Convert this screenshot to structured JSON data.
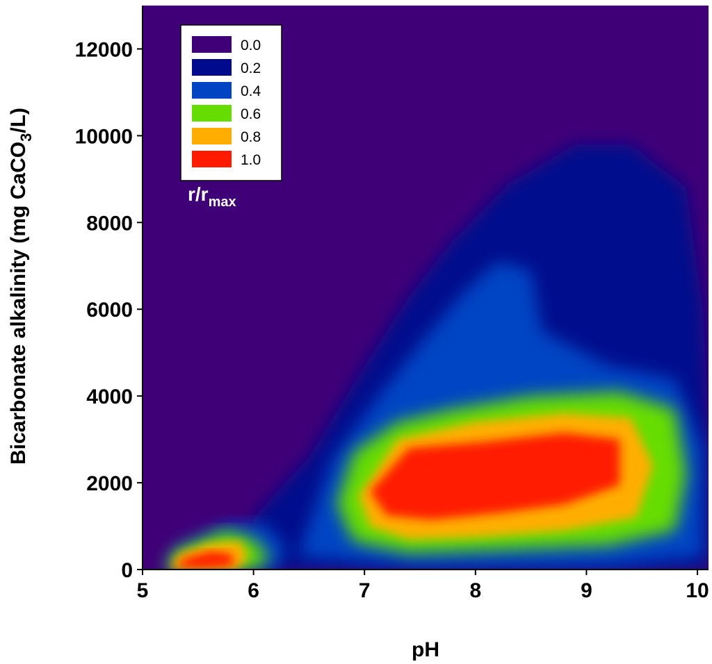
{
  "chart_data": {
    "type": "heatmap",
    "xlabel": "pH",
    "ylabel_main": "Bicarbonate alkalinity (mg CaCO",
    "ylabel_sub": "3",
    "ylabel_end": "/L)",
    "xlim": [
      5,
      10.1
    ],
    "ylim": [
      0,
      13000
    ],
    "x_ticks": [
      "5",
      "6",
      "7",
      "8",
      "9",
      "10"
    ],
    "y_ticks": [
      "0",
      "2000",
      "4000",
      "6000",
      "8000",
      "10000",
      "12000"
    ],
    "legend": {
      "title_main": "r/r",
      "title_sub": "max",
      "placement": "top-left",
      "entries": [
        {
          "label": "0.0",
          "color": "#3f0077"
        },
        {
          "label": "0.2",
          "color": "#000a8c"
        },
        {
          "label": "0.4",
          "color": "#0044c4"
        },
        {
          "label": "0.6",
          "color": "#66dd00"
        },
        {
          "label": "0.8",
          "color": "#ffae00"
        },
        {
          "label": "1.0",
          "color": "#ff1a00"
        }
      ]
    },
    "regions": [
      {
        "level": 0.2,
        "polygon": [
          [
            6.0,
            1200
          ],
          [
            6.5,
            2600
          ],
          [
            7.0,
            4700
          ],
          [
            7.4,
            6300
          ],
          [
            7.8,
            7600
          ],
          [
            8.3,
            8900
          ],
          [
            8.9,
            9800
          ],
          [
            9.4,
            9800
          ],
          [
            9.9,
            8800
          ],
          [
            10.05,
            6000
          ],
          [
            10.1,
            3200
          ],
          [
            10.1,
            0
          ],
          [
            6.0,
            0
          ]
        ]
      },
      {
        "level": 0.4,
        "polygon": [
          [
            6.4,
            300
          ],
          [
            6.7,
            2500
          ],
          [
            7.1,
            3900
          ],
          [
            7.5,
            5200
          ],
          [
            7.9,
            6400
          ],
          [
            8.2,
            7100
          ],
          [
            8.5,
            6900
          ],
          [
            8.6,
            5500
          ],
          [
            9.2,
            4700
          ],
          [
            9.8,
            4400
          ],
          [
            10.05,
            2800
          ],
          [
            10.05,
            300
          ],
          [
            9.2,
            80
          ],
          [
            7.5,
            60
          ]
        ]
      },
      {
        "level": 0.4,
        "polygon": [
          [
            5.2,
            0
          ],
          [
            5.3,
            500
          ],
          [
            5.75,
            1050
          ],
          [
            6.1,
            1050
          ],
          [
            6.3,
            500
          ],
          [
            6.2,
            0
          ]
        ]
      },
      {
        "level": 0.6,
        "polygon": [
          [
            6.75,
            1500
          ],
          [
            6.9,
            2700
          ],
          [
            7.3,
            3400
          ],
          [
            7.8,
            3700
          ],
          [
            8.5,
            4000
          ],
          [
            9.3,
            4100
          ],
          [
            9.8,
            3700
          ],
          [
            9.9,
            2200
          ],
          [
            9.8,
            900
          ],
          [
            9.2,
            550
          ],
          [
            8.2,
            450
          ],
          [
            7.4,
            380
          ],
          [
            6.9,
            650
          ]
        ]
      },
      {
        "level": 0.6,
        "polygon": [
          [
            5.2,
            0
          ],
          [
            5.3,
            420
          ],
          [
            5.75,
            900
          ],
          [
            6.0,
            700
          ],
          [
            6.15,
            250
          ],
          [
            6.0,
            0
          ]
        ]
      },
      {
        "level": 0.8,
        "polygon": [
          [
            6.95,
            1700
          ],
          [
            7.3,
            3000
          ],
          [
            8.0,
            3400
          ],
          [
            8.8,
            3600
          ],
          [
            9.4,
            3500
          ],
          [
            9.6,
            2400
          ],
          [
            9.45,
            1200
          ],
          [
            8.8,
            900
          ],
          [
            8.0,
            750
          ],
          [
            7.4,
            700
          ],
          [
            7.05,
            1000
          ]
        ]
      },
      {
        "level": 0.8,
        "polygon": [
          [
            5.25,
            0
          ],
          [
            5.32,
            350
          ],
          [
            5.6,
            600
          ],
          [
            5.88,
            650
          ],
          [
            5.95,
            280
          ],
          [
            5.85,
            0
          ]
        ]
      },
      {
        "level": 1.0,
        "polygon": [
          [
            7.05,
            1800
          ],
          [
            7.4,
            2800
          ],
          [
            8.1,
            2950
          ],
          [
            8.8,
            3150
          ],
          [
            9.3,
            3000
          ],
          [
            9.3,
            1950
          ],
          [
            8.8,
            1500
          ],
          [
            8.2,
            1300
          ],
          [
            7.6,
            1150
          ],
          [
            7.2,
            1250
          ]
        ]
      },
      {
        "level": 1.0,
        "polygon": [
          [
            5.3,
            40
          ],
          [
            5.38,
            260
          ],
          [
            5.62,
            420
          ],
          [
            5.8,
            360
          ],
          [
            5.83,
            100
          ],
          [
            5.6,
            30
          ]
        ]
      }
    ]
  }
}
